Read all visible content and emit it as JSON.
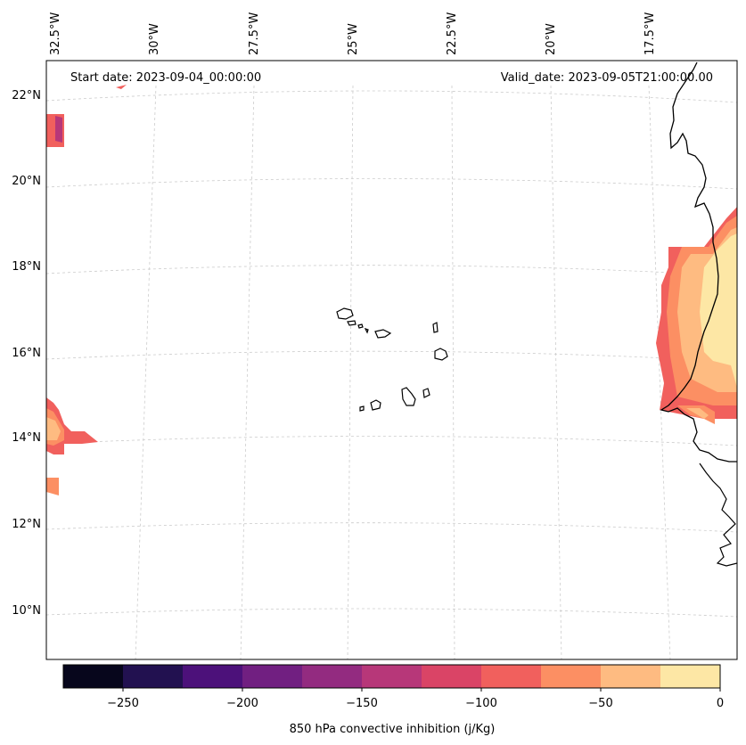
{
  "map": {
    "start_date_text": "Start date: 2023-09-04_00:00:00",
    "valid_date_text": "Valid_date: 2023-09-05T21:00:00.00",
    "lon_labels": [
      "32.5°W",
      "30°W",
      "27.5°W",
      "25°W",
      "22.5°W",
      "20°W",
      "17.5°W"
    ],
    "lat_labels": [
      "22°N",
      "20°N",
      "18°N",
      "16°N",
      "14°N",
      "12°N",
      "10°N"
    ],
    "gridlines": true
  },
  "colorbar": {
    "label": "850 hPa convective inhibition (j/Kg)",
    "ticks": [
      "−250",
      "−200",
      "−150",
      "−100",
      "−50",
      "0"
    ],
    "levels": [
      -275,
      -250,
      -225,
      -200,
      -175,
      -150,
      -125,
      -100,
      -75,
      -50,
      -25,
      0
    ],
    "colors": [
      "#07061c",
      "#221150",
      "#4c117a",
      "#711f81",
      "#932b80",
      "#b73779",
      "#da4466",
      "#f1605d",
      "#fc8f63",
      "#febb81",
      "#fde7a5"
    ]
  }
}
